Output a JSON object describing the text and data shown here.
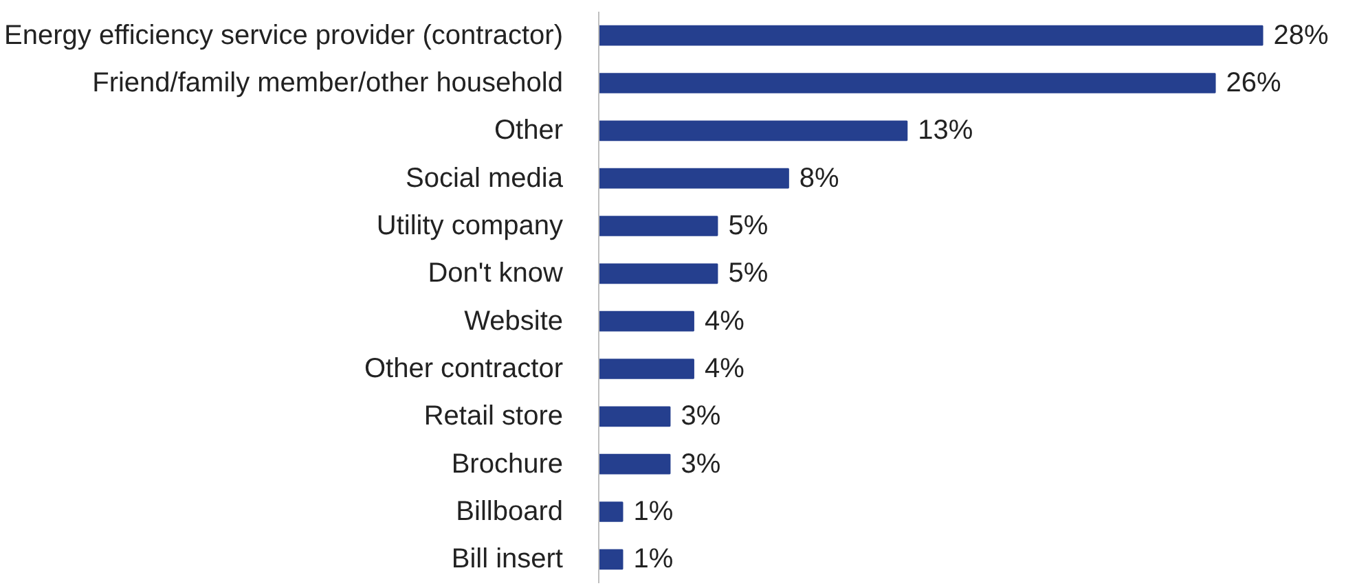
{
  "chart_data": {
    "type": "bar",
    "orientation": "horizontal",
    "categories": [
      "Energy efficiency service provider (contractor)",
      "Friend/family member/other household",
      "Other",
      "Social media",
      "Utility company",
      "Don't know",
      "Website",
      "Other contractor",
      "Retail store",
      "Brochure",
      "Billboard",
      "Bill insert"
    ],
    "values": [
      28,
      26,
      13,
      8,
      5,
      5,
      4,
      4,
      3,
      3,
      1,
      1
    ],
    "value_labels": [
      "28%",
      "26%",
      "13%",
      "8%",
      "5%",
      "5%",
      "4%",
      "4%",
      "3%",
      "3%",
      "1%",
      "1%"
    ],
    "color": "#253f8e"
  }
}
